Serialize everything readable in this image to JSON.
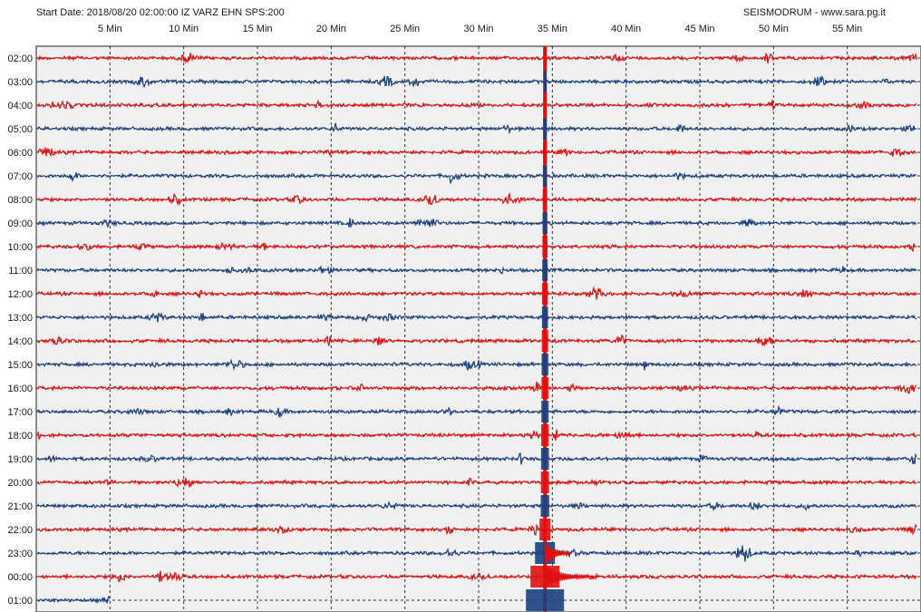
{
  "header": {
    "left": "Start Date: 2018/08/20 02:00:00 IZ VARZ EHN SPS:200",
    "right": "SEISMODRUM - www.sara.pg.it"
  },
  "chart_data": {
    "type": "line",
    "title": "",
    "xlabel": "",
    "ylabel": "",
    "x_ticks": [
      "5 Min",
      "10 Min",
      "15 Min",
      "20 Min",
      "25 Min",
      "30 Min",
      "35 Min",
      "40 Min",
      "45 Min",
      "50 Min",
      "55 Min"
    ],
    "x_tick_values": [
      5,
      10,
      15,
      20,
      25,
      30,
      35,
      40,
      45,
      50,
      55
    ],
    "xlim": [
      0,
      60
    ],
    "grid": true,
    "hour_labels": [
      "02:00",
      "03:00",
      "04:00",
      "05:00",
      "06:00",
      "07:00",
      "08:00",
      "09:00",
      "10:00",
      "11:00",
      "12:00",
      "13:00",
      "14:00",
      "15:00",
      "16:00",
      "17:00",
      "18:00",
      "19:00",
      "20:00",
      "21:00",
      "22:00",
      "23:00",
      "00:00",
      "01:00"
    ],
    "trace_colors": [
      "#e01010",
      "#1a4080"
    ],
    "background_color": "#f0f0f0",
    "event": {
      "minute": 34.5,
      "hour_label": "02:00",
      "description": "large earthquake spike extending across traces with coda decaying until about 00:00"
    },
    "last_trace_end_minute": 5
  }
}
